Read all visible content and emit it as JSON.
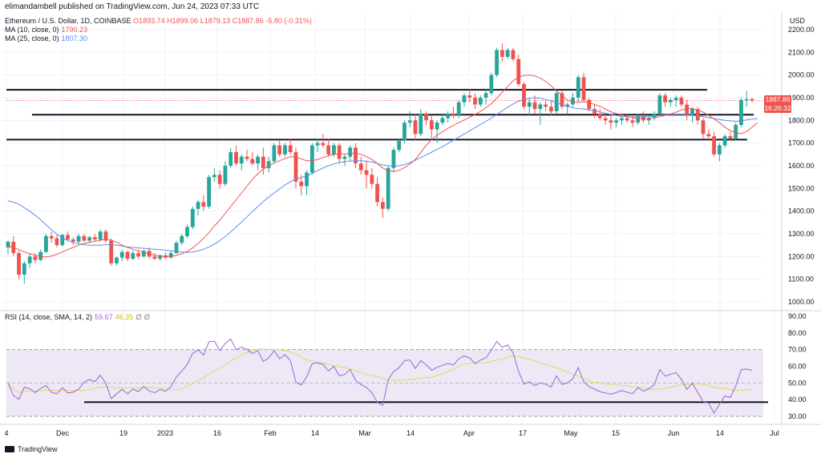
{
  "header": {
    "published": "elimandambell published on TradingView.com, Jun 24, 2023 07:33 UTC",
    "symbol": "Ethereum / U.S. Dollar, 1D, COINBASE",
    "o": "O1893.74",
    "h": "H1899.06",
    "l": "L1879.13",
    "c": "C1887.86",
    "chg": "-5.80 (-0.31%)",
    "ma10_label": "MA (10, close, 0)",
    "ma10_value": "1790.23",
    "ma25_label": "MA (25, close, 0)",
    "ma25_value": "1807.30",
    "rsi_label": "RSI (14, close, SMA, 14, 2)",
    "rsi_value": "59.67",
    "rsi_ma_value": "46.35",
    "rsi_extra": "∅ ∅",
    "currency": "USD"
  },
  "price_tag": {
    "price": "1887.86",
    "countdown": "16:26:32"
  },
  "footer": {
    "brand": "TradingView"
  },
  "colors": {
    "up": "#26a69a",
    "down": "#ef5350",
    "ma10": "#ef5350",
    "ma25": "#5b8def",
    "rsi": "#9c66d6",
    "rsi_ma": "#e0dc5a",
    "band": "#ede7f6"
  },
  "chart_data": {
    "type": "candlestick",
    "price_axis": {
      "ticks": [
        "2200.00",
        "2100.00",
        "2000.00",
        "1900.00",
        "1800.00",
        "1700.00",
        "1600.00",
        "1500.00",
        "1400.00",
        "1300.00",
        "1200.00",
        "1100.00",
        "1000.00"
      ],
      "range": [
        1000,
        2200
      ]
    },
    "rsi_axis": {
      "ticks": [
        "90.00",
        "80.00",
        "70.00",
        "60.00",
        "50.00",
        "40.00",
        "30.00"
      ],
      "range": [
        30,
        90
      ],
      "band": [
        30,
        70
      ]
    },
    "x_ticks": [
      "4",
      "Dec",
      "19",
      "2023",
      "16",
      "Feb",
      "14",
      "Mar",
      "14",
      "Apr",
      "17",
      "May",
      "15",
      "Jun",
      "14",
      "Jul"
    ],
    "horizontal_levels": [
      {
        "price": 1935,
        "x_from": "start",
        "x_to": "Jun 6"
      },
      {
        "price": 1825,
        "x_from": "Nov 15",
        "x_to": "Jun 19"
      },
      {
        "price": 1715,
        "x_from": "start",
        "x_to": "Jun 14"
      }
    ],
    "rsi_support": {
      "value": 38.5
    },
    "last_price": 1887.86,
    "candles": [
      [
        1240,
        1270,
        1210,
        1265
      ],
      [
        1265,
        1290,
        1200,
        1215
      ],
      [
        1215,
        1225,
        1100,
        1120
      ],
      [
        1120,
        1180,
        1080,
        1170
      ],
      [
        1170,
        1210,
        1150,
        1200
      ],
      [
        1200,
        1215,
        1170,
        1185
      ],
      [
        1185,
        1230,
        1180,
        1220
      ],
      [
        1220,
        1300,
        1215,
        1290
      ],
      [
        1290,
        1310,
        1260,
        1280
      ],
      [
        1280,
        1295,
        1240,
        1250
      ],
      [
        1250,
        1300,
        1245,
        1295
      ],
      [
        1295,
        1310,
        1270,
        1275
      ],
      [
        1275,
        1285,
        1250,
        1265
      ],
      [
        1265,
        1300,
        1255,
        1290
      ],
      [
        1290,
        1300,
        1265,
        1270
      ],
      [
        1270,
        1290,
        1260,
        1285
      ],
      [
        1285,
        1300,
        1270,
        1275
      ],
      [
        1275,
        1320,
        1265,
        1310
      ],
      [
        1310,
        1320,
        1260,
        1270
      ],
      [
        1270,
        1280,
        1160,
        1170
      ],
      [
        1170,
        1200,
        1160,
        1195
      ],
      [
        1195,
        1230,
        1180,
        1220
      ],
      [
        1220,
        1225,
        1180,
        1190
      ],
      [
        1190,
        1225,
        1185,
        1215
      ],
      [
        1215,
        1230,
        1190,
        1200
      ],
      [
        1200,
        1230,
        1195,
        1225
      ],
      [
        1225,
        1240,
        1190,
        1200
      ],
      [
        1200,
        1215,
        1185,
        1190
      ],
      [
        1190,
        1210,
        1180,
        1205
      ],
      [
        1205,
        1220,
        1190,
        1195
      ],
      [
        1195,
        1225,
        1190,
        1215
      ],
      [
        1215,
        1270,
        1210,
        1260
      ],
      [
        1260,
        1300,
        1250,
        1290
      ],
      [
        1290,
        1340,
        1280,
        1330
      ],
      [
        1330,
        1420,
        1320,
        1410
      ],
      [
        1410,
        1450,
        1380,
        1440
      ],
      [
        1440,
        1470,
        1400,
        1420
      ],
      [
        1420,
        1560,
        1410,
        1550
      ],
      [
        1550,
        1590,
        1530,
        1560
      ],
      [
        1560,
        1580,
        1500,
        1520
      ],
      [
        1520,
        1620,
        1510,
        1600
      ],
      [
        1600,
        1680,
        1590,
        1660
      ],
      [
        1660,
        1690,
        1600,
        1610
      ],
      [
        1610,
        1650,
        1580,
        1640
      ],
      [
        1640,
        1670,
        1620,
        1630
      ],
      [
        1630,
        1660,
        1600,
        1610
      ],
      [
        1610,
        1650,
        1580,
        1640
      ],
      [
        1640,
        1680,
        1560,
        1590
      ],
      [
        1590,
        1640,
        1570,
        1620
      ],
      [
        1620,
        1700,
        1610,
        1690
      ],
      [
        1690,
        1710,
        1640,
        1650
      ],
      [
        1650,
        1700,
        1640,
        1690
      ],
      [
        1690,
        1720,
        1650,
        1660
      ],
      [
        1660,
        1680,
        1500,
        1530
      ],
      [
        1530,
        1560,
        1470,
        1510
      ],
      [
        1510,
        1580,
        1470,
        1570
      ],
      [
        1570,
        1700,
        1560,
        1690
      ],
      [
        1690,
        1720,
        1660,
        1700
      ],
      [
        1700,
        1740,
        1680,
        1690
      ],
      [
        1690,
        1720,
        1640,
        1650
      ],
      [
        1650,
        1700,
        1640,
        1690
      ],
      [
        1690,
        1700,
        1610,
        1630
      ],
      [
        1630,
        1650,
        1600,
        1640
      ],
      [
        1640,
        1690,
        1620,
        1680
      ],
      [
        1680,
        1700,
        1590,
        1610
      ],
      [
        1610,
        1640,
        1560,
        1580
      ],
      [
        1580,
        1620,
        1500,
        1560
      ],
      [
        1560,
        1590,
        1500,
        1520
      ],
      [
        1520,
        1550,
        1420,
        1440
      ],
      [
        1440,
        1460,
        1370,
        1410
      ],
      [
        1410,
        1600,
        1400,
        1590
      ],
      [
        1590,
        1680,
        1570,
        1670
      ],
      [
        1670,
        1720,
        1660,
        1710
      ],
      [
        1710,
        1800,
        1700,
        1790
      ],
      [
        1790,
        1840,
        1770,
        1800
      ],
      [
        1800,
        1830,
        1710,
        1740
      ],
      [
        1740,
        1850,
        1730,
        1830
      ],
      [
        1830,
        1840,
        1780,
        1800
      ],
      [
        1800,
        1820,
        1720,
        1760
      ],
      [
        1760,
        1800,
        1700,
        1790
      ],
      [
        1790,
        1830,
        1780,
        1810
      ],
      [
        1810,
        1840,
        1790,
        1830
      ],
      [
        1830,
        1860,
        1810,
        1820
      ],
      [
        1820,
        1890,
        1810,
        1880
      ],
      [
        1880,
        1920,
        1860,
        1910
      ],
      [
        1910,
        1940,
        1880,
        1900
      ],
      [
        1900,
        1920,
        1850,
        1870
      ],
      [
        1870,
        1910,
        1860,
        1900
      ],
      [
        1900,
        1940,
        1870,
        1920
      ],
      [
        1920,
        2010,
        1910,
        2000
      ],
      [
        2000,
        2120,
        1990,
        2110
      ],
      [
        2110,
        2140,
        2060,
        2080
      ],
      [
        2080,
        2120,
        2070,
        2110
      ],
      [
        2110,
        2120,
        2060,
        2070
      ],
      [
        2070,
        2090,
        1950,
        1960
      ],
      [
        1960,
        1970,
        1850,
        1860
      ],
      [
        1860,
        1900,
        1820,
        1880
      ],
      [
        1880,
        1910,
        1830,
        1850
      ],
      [
        1850,
        1880,
        1780,
        1870
      ],
      [
        1870,
        1890,
        1840,
        1860
      ],
      [
        1860,
        1890,
        1820,
        1840
      ],
      [
        1840,
        1930,
        1830,
        1920
      ],
      [
        1920,
        1930,
        1850,
        1860
      ],
      [
        1860,
        1880,
        1830,
        1870
      ],
      [
        1870,
        1920,
        1860,
        1900
      ],
      [
        1900,
        2000,
        1880,
        1990
      ],
      [
        1990,
        2010,
        1880,
        1890
      ],
      [
        1890,
        1900,
        1840,
        1850
      ],
      [
        1850,
        1870,
        1810,
        1830
      ],
      [
        1830,
        1850,
        1800,
        1810
      ],
      [
        1810,
        1830,
        1780,
        1800
      ],
      [
        1800,
        1830,
        1760,
        1790
      ],
      [
        1790,
        1810,
        1770,
        1800
      ],
      [
        1800,
        1820,
        1780,
        1810
      ],
      [
        1810,
        1830,
        1790,
        1800
      ],
      [
        1800,
        1820,
        1770,
        1790
      ],
      [
        1790,
        1830,
        1780,
        1820
      ],
      [
        1820,
        1840,
        1790,
        1800
      ],
      [
        1800,
        1820,
        1780,
        1810
      ],
      [
        1810,
        1840,
        1800,
        1830
      ],
      [
        1830,
        1920,
        1820,
        1910
      ],
      [
        1910,
        1920,
        1860,
        1880
      ],
      [
        1880,
        1900,
        1860,
        1890
      ],
      [
        1890,
        1910,
        1860,
        1900
      ],
      [
        1900,
        1910,
        1860,
        1870
      ],
      [
        1870,
        1890,
        1800,
        1820
      ],
      [
        1820,
        1860,
        1790,
        1850
      ],
      [
        1850,
        1860,
        1780,
        1800
      ],
      [
        1800,
        1810,
        1720,
        1740
      ],
      [
        1740,
        1760,
        1710,
        1730
      ],
      [
        1730,
        1750,
        1640,
        1650
      ],
      [
        1650,
        1700,
        1620,
        1690
      ],
      [
        1690,
        1740,
        1680,
        1730
      ],
      [
        1730,
        1750,
        1710,
        1720
      ],
      [
        1720,
        1790,
        1710,
        1780
      ],
      [
        1780,
        1900,
        1770,
        1890
      ],
      [
        1890,
        1930,
        1860,
        1894
      ],
      [
        1894,
        1899,
        1879,
        1888
      ]
    ],
    "ma10": [
      1245,
      1240,
      1230,
      1220,
      1212,
      1205,
      1200,
      1198,
      1202,
      1210,
      1220,
      1230,
      1240,
      1250,
      1258,
      1262,
      1268,
      1272,
      1275,
      1272,
      1262,
      1250,
      1240,
      1232,
      1225,
      1218,
      1212,
      1206,
      1202,
      1200,
      1200,
      1205,
      1212,
      1222,
      1238,
      1258,
      1280,
      1305,
      1335,
      1360,
      1390,
      1420,
      1450,
      1480,
      1510,
      1540,
      1565,
      1585,
      1600,
      1612,
      1622,
      1632,
      1640,
      1638,
      1630,
      1622,
      1622,
      1628,
      1636,
      1644,
      1650,
      1652,
      1652,
      1654,
      1656,
      1650,
      1640,
      1628,
      1610,
      1590,
      1578,
      1575,
      1580,
      1592,
      1608,
      1628,
      1658,
      1690,
      1715,
      1735,
      1750,
      1765,
      1778,
      1790,
      1802,
      1814,
      1826,
      1840,
      1856,
      1874,
      1898,
      1924,
      1950,
      1975,
      1990,
      1998,
      2000,
      1996,
      1986,
      1972,
      1952,
      1930,
      1910,
      1890,
      1880,
      1880,
      1882,
      1878,
      1870,
      1862,
      1850,
      1838,
      1830,
      1824,
      1818,
      1812,
      1808,
      1808,
      1810,
      1812,
      1816,
      1822,
      1828,
      1836,
      1846,
      1852,
      1852,
      1846,
      1836,
      1822,
      1806,
      1790,
      1770,
      1755,
      1745,
      1742,
      1750,
      1770,
      1790
    ],
    "ma25": [
      1445,
      1440,
      1430,
      1415,
      1400,
      1382,
      1362,
      1340,
      1318,
      1298,
      1282,
      1270,
      1262,
      1256,
      1252,
      1250,
      1250,
      1250,
      1252,
      1252,
      1250,
      1246,
      1242,
      1240,
      1238,
      1236,
      1234,
      1232,
      1230,
      1228,
      1225,
      1222,
      1220,
      1218,
      1220,
      1225,
      1232,
      1242,
      1255,
      1270,
      1288,
      1308,
      1330,
      1352,
      1375,
      1398,
      1420,
      1442,
      1462,
      1480,
      1498,
      1515,
      1530,
      1540,
      1548,
      1556,
      1566,
      1578,
      1590,
      1600,
      1608,
      1614,
      1618,
      1620,
      1622,
      1622,
      1620,
      1616,
      1610,
      1604,
      1600,
      1598,
      1600,
      1606,
      1614,
      1624,
      1636,
      1648,
      1660,
      1672,
      1684,
      1698,
      1712,
      1726,
      1740,
      1754,
      1768,
      1782,
      1796,
      1810,
      1826,
      1842,
      1858,
      1872,
      1884,
      1892,
      1898,
      1900,
      1898,
      1892,
      1886,
      1878,
      1870,
      1862,
      1856,
      1852,
      1850,
      1846,
      1842,
      1838,
      1832,
      1826,
      1822,
      1818,
      1816,
      1815,
      1815,
      1816,
      1818,
      1820,
      1822,
      1824,
      1826,
      1826,
      1826,
      1824,
      1822,
      1820,
      1816,
      1812,
      1808,
      1804,
      1800,
      1798,
      1796,
      1798,
      1802,
      1806,
      1807
    ]
  }
}
